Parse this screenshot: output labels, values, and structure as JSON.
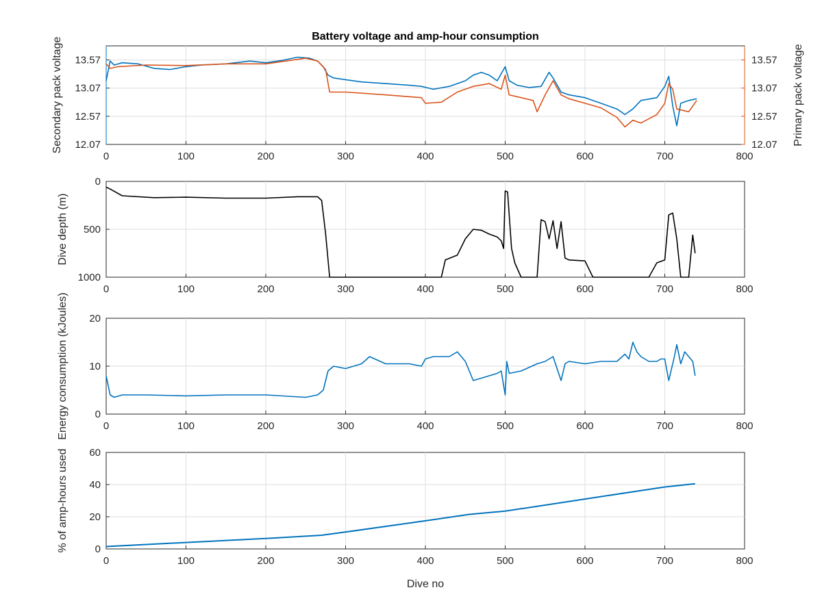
{
  "chart_data": [
    {
      "type": "line",
      "title": "Battery voltage and amp-hour consumption",
      "ylabel_left": "Secondary pack voltage",
      "ylabel_right": "Primary pack voltage",
      "xlim": [
        0,
        800
      ],
      "xticks": [
        "0",
        "100",
        "200",
        "300",
        "400",
        "500",
        "600",
        "700",
        "800"
      ],
      "ylim": [
        12.07,
        13.82
      ],
      "yticks_left": [
        "12.07",
        "12.57",
        "13.07",
        "13.57"
      ],
      "yticks_right": [
        "12.07",
        "12.57",
        "13.07",
        "13.57"
      ],
      "grid": true,
      "colors": {
        "left": "#0072BD",
        "right": "#D95319"
      },
      "series": [
        {
          "axis": "left",
          "x": [
            0,
            5,
            10,
            20,
            40,
            60,
            80,
            100,
            120,
            150,
            180,
            200,
            220,
            240,
            255,
            265,
            272,
            278,
            285,
            300,
            320,
            350,
            380,
            395,
            410,
            430,
            450,
            460,
            470,
            480,
            490,
            500,
            505,
            515,
            530,
            545,
            555,
            560,
            570,
            580,
            600,
            620,
            640,
            650,
            660,
            670,
            690,
            700,
            705,
            710,
            715,
            720,
            730,
            740
          ],
          "y": [
            13.2,
            13.55,
            13.48,
            13.52,
            13.5,
            13.42,
            13.4,
            13.45,
            13.48,
            13.5,
            13.55,
            13.52,
            13.56,
            13.62,
            13.6,
            13.55,
            13.45,
            13.3,
            13.25,
            13.22,
            13.18,
            13.15,
            13.12,
            13.1,
            13.05,
            13.1,
            13.2,
            13.3,
            13.35,
            13.3,
            13.2,
            13.45,
            13.2,
            13.12,
            13.08,
            13.1,
            13.35,
            13.25,
            13.0,
            12.95,
            12.9,
            12.8,
            12.7,
            12.6,
            12.7,
            12.85,
            12.9,
            13.1,
            13.28,
            12.75,
            12.4,
            12.8,
            12.85,
            12.88
          ]
        },
        {
          "axis": "right",
          "x": [
            0,
            5,
            15,
            50,
            100,
            150,
            200,
            250,
            265,
            275,
            280,
            300,
            350,
            395,
            400,
            420,
            440,
            460,
            480,
            495,
            500,
            505,
            520,
            535,
            540,
            550,
            560,
            570,
            580,
            600,
            620,
            640,
            650,
            660,
            670,
            690,
            700,
            705,
            710,
            715,
            730,
            740
          ],
          "y": [
            13.5,
            13.42,
            13.45,
            13.48,
            13.47,
            13.5,
            13.5,
            13.6,
            13.55,
            13.4,
            13.0,
            13.0,
            12.95,
            12.9,
            12.8,
            12.82,
            13.0,
            13.1,
            13.15,
            13.05,
            13.3,
            12.95,
            12.9,
            12.85,
            12.65,
            12.95,
            13.2,
            12.95,
            12.88,
            12.8,
            12.72,
            12.55,
            12.38,
            12.5,
            12.45,
            12.6,
            12.8,
            13.15,
            13.05,
            12.7,
            12.65,
            12.85
          ]
        }
      ]
    },
    {
      "type": "line",
      "ylabel": "Dive depth (m)",
      "xlim": [
        0,
        800
      ],
      "xticks": [
        "0",
        "100",
        "200",
        "300",
        "400",
        "500",
        "600",
        "700",
        "800"
      ],
      "ylim": [
        0,
        1000
      ],
      "y_reversed": true,
      "yticks": [
        "0",
        "500",
        "1000"
      ],
      "grid": true,
      "color": "#000000",
      "series": [
        {
          "x": [
            0,
            5,
            20,
            60,
            100,
            150,
            200,
            240,
            265,
            270,
            275,
            280,
            300,
            350,
            400,
            420,
            425,
            440,
            450,
            460,
            470,
            480,
            490,
            495,
            498,
            500,
            503,
            508,
            512,
            520,
            540,
            545,
            550,
            555,
            560,
            565,
            570,
            575,
            580,
            600,
            610,
            620,
            680,
            690,
            700,
            705,
            710,
            715,
            720,
            730,
            735,
            738
          ],
          "y": [
            60,
            80,
            150,
            170,
            165,
            175,
            175,
            160,
            160,
            200,
            550,
            1000,
            1000,
            1000,
            1000,
            1000,
            820,
            770,
            600,
            500,
            510,
            550,
            580,
            620,
            700,
            100,
            110,
            700,
            850,
            1000,
            1000,
            400,
            420,
            600,
            410,
            700,
            420,
            800,
            820,
            830,
            1000,
            1000,
            1000,
            850,
            820,
            350,
            330,
            600,
            1000,
            1000,
            560,
            750
          ]
        }
      ]
    },
    {
      "type": "line",
      "ylabel": "Energy consumption (kJoules)",
      "xlim": [
        0,
        800
      ],
      "xticks": [
        "0",
        "100",
        "200",
        "300",
        "400",
        "500",
        "600",
        "700",
        "800"
      ],
      "ylim": [
        0,
        20
      ],
      "yticks": [
        "0",
        "10",
        "20"
      ],
      "grid": true,
      "color": "#0072BD",
      "series": [
        {
          "x": [
            0,
            5,
            10,
            20,
            50,
            100,
            150,
            200,
            250,
            265,
            272,
            278,
            285,
            300,
            320,
            330,
            350,
            380,
            395,
            400,
            410,
            430,
            440,
            450,
            455,
            460,
            470,
            480,
            490,
            495,
            500,
            502,
            505,
            520,
            540,
            550,
            560,
            570,
            575,
            580,
            600,
            620,
            640,
            650,
            655,
            660,
            665,
            670,
            680,
            690,
            695,
            700,
            705,
            712,
            715,
            720,
            725,
            730,
            735,
            738
          ],
          "y": [
            8,
            4,
            3.5,
            4,
            4,
            3.8,
            4,
            4,
            3.5,
            4,
            5,
            9,
            10,
            9.5,
            10.5,
            12,
            10.5,
            10.5,
            10,
            11.5,
            12,
            12,
            13,
            11,
            9,
            7,
            7.5,
            8,
            8.5,
            9,
            4,
            11,
            8.5,
            9,
            10.5,
            11,
            12,
            7,
            10.5,
            11,
            10.5,
            11,
            11,
            12.5,
            11.5,
            15,
            13,
            12,
            11,
            11,
            11.5,
            11.5,
            7,
            12,
            14.5,
            10.5,
            13,
            12,
            11,
            8
          ]
        }
      ]
    },
    {
      "type": "line",
      "ylabel": "% of amp-hours used",
      "xlabel": "Dive no",
      "xlim": [
        0,
        800
      ],
      "xticks": [
        "0",
        "100",
        "200",
        "300",
        "400",
        "500",
        "600",
        "700",
        "800"
      ],
      "ylim": [
        0,
        60
      ],
      "yticks": [
        "0",
        "20",
        "40",
        "60"
      ],
      "grid": true,
      "color": "#0072BD",
      "series": [
        {
          "x": [
            0,
            100,
            200,
            270,
            300,
            400,
            455,
            500,
            600,
            700,
            738
          ],
          "y": [
            1.5,
            4,
            6.5,
            8.5,
            10.5,
            17.5,
            21.5,
            23.5,
            31,
            38.5,
            40.5
          ]
        }
      ]
    }
  ]
}
